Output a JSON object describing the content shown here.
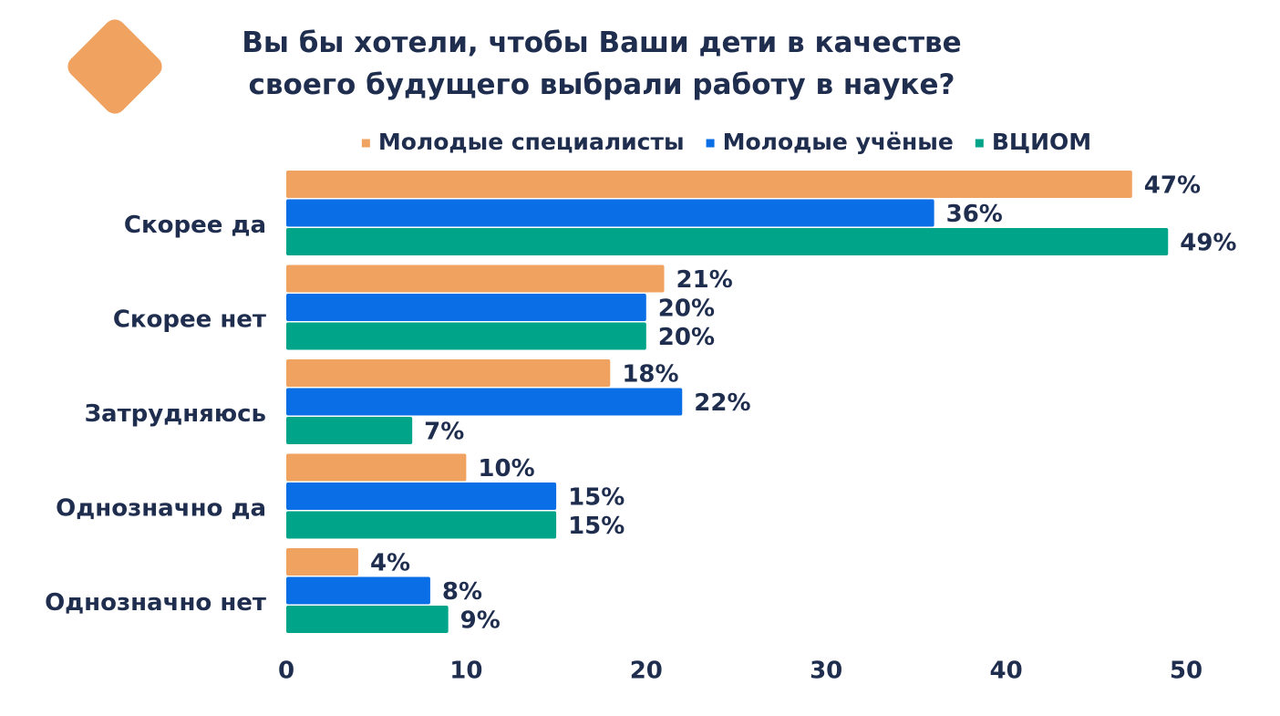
{
  "title_lines": [
    "Вы бы хотели, чтобы Ваши дети в качестве",
    "своего будущего выбрали работу в науке?"
  ],
  "chart_data": {
    "type": "bar",
    "orientation": "horizontal",
    "categories": [
      "Скорее да",
      "Скорее нет",
      "Затрудняюсь",
      "Однозначно да",
      "Однозначно нет"
    ],
    "series": [
      {
        "name": "Молодые специалисты",
        "color": "#f0a261",
        "values": [
          47,
          21,
          18,
          10,
          4
        ]
      },
      {
        "name": "Молодые учёные",
        "color": "#0a6ee6",
        "values": [
          36,
          20,
          22,
          15,
          8
        ]
      },
      {
        "name": "ВЦИОМ",
        "color": "#00a489",
        "values": [
          49,
          20,
          7,
          15,
          9
        ]
      }
    ],
    "value_suffix": "%",
    "xlim": [
      0,
      50
    ],
    "xticks": [
      0,
      10,
      20,
      30,
      40,
      50
    ],
    "grid": false,
    "legend_position": "top"
  },
  "logo_color": "#f0a261"
}
